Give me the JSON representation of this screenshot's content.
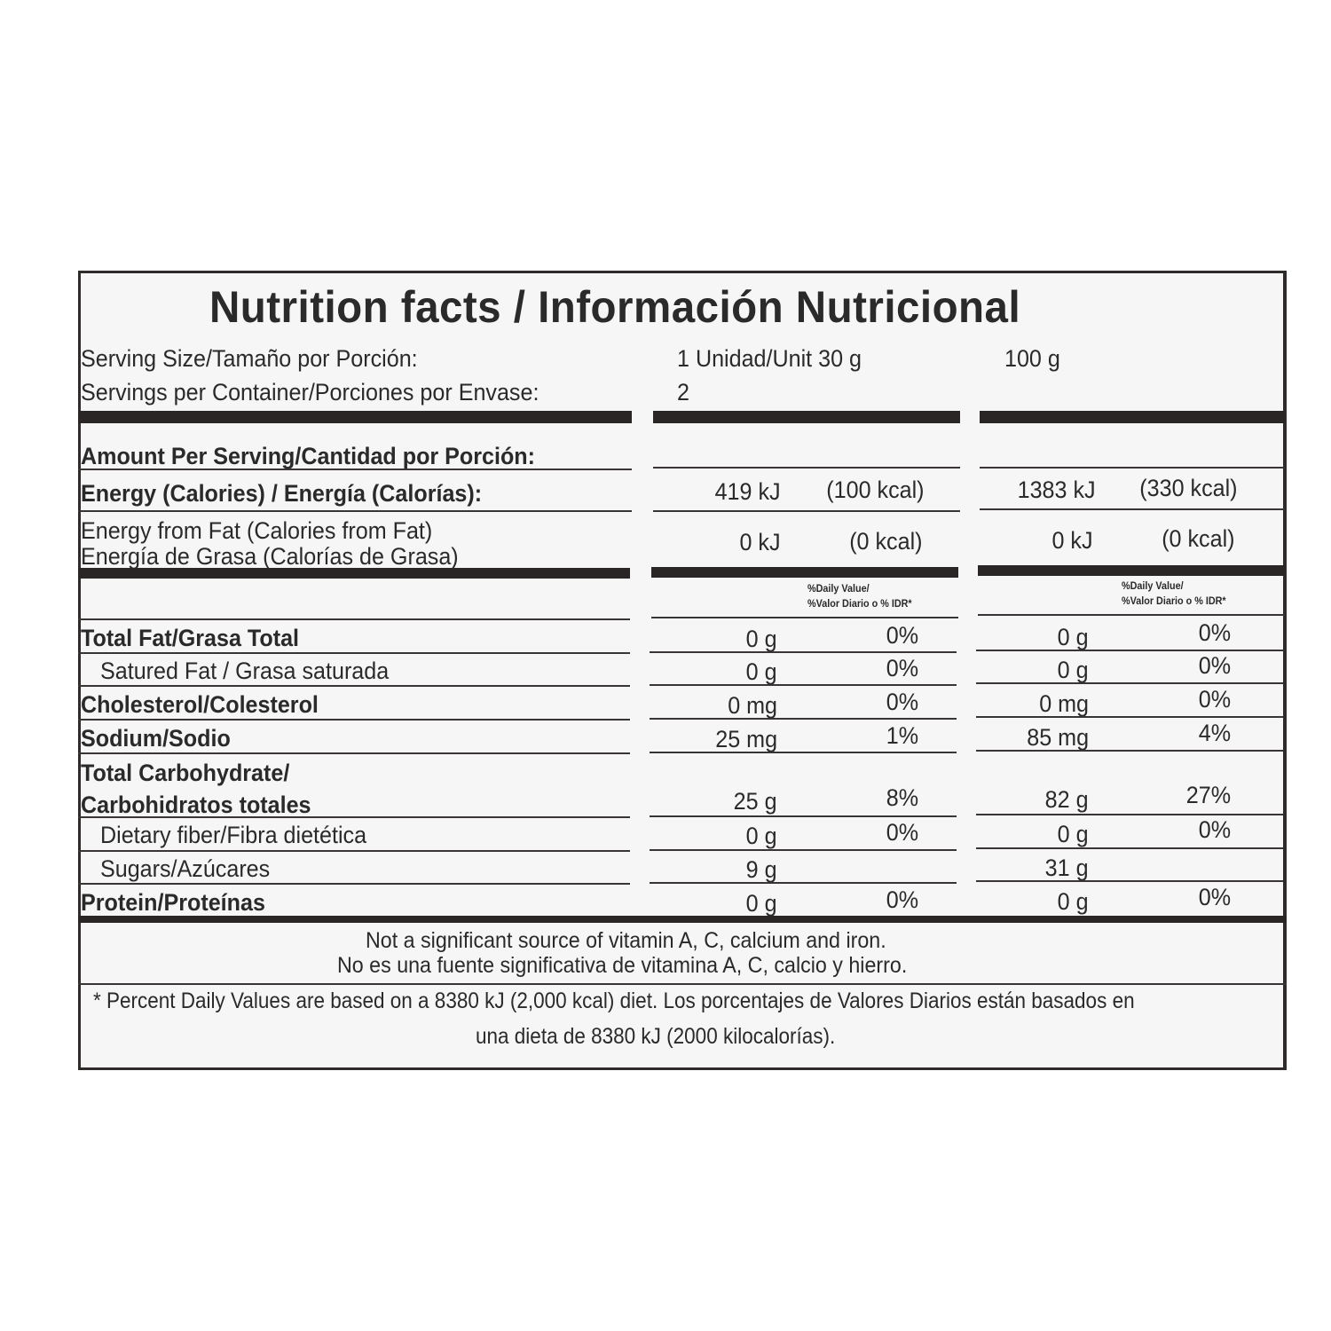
{
  "title": "Nutrition facts / Información Nutricional",
  "serving_size": {
    "label": "Serving Size/Tamaño por Porción:",
    "value_serving": "1 Unidad/Unit 30 g",
    "value_100": "100 g"
  },
  "servings_per_container": {
    "label": "Servings per Container/Porciones por Envase:",
    "value": "2"
  },
  "amount_per_serving": "Amount Per Serving/Cantidad por Porción:",
  "energy": {
    "label": "Energy (Calories) / Energía (Calorías):",
    "kj_serving": "419 kJ",
    "kcal_serving": "(100 kcal)",
    "kj_100": "1383 kJ",
    "kcal_100": "(330 kcal)"
  },
  "energy_fat": {
    "label_en": "Energy from Fat (Calories from Fat)",
    "label_es": "Energía de Grasa (Calorías de Grasa)",
    "kj_serving": "0 kJ",
    "kcal_serving": "(0 kcal)",
    "kj_100": "0 kJ",
    "kcal_100": "(0 kcal)"
  },
  "dv_header": {
    "line1": "%Daily Value/",
    "line2": "%Valor Diario o % IDR*"
  },
  "rows": [
    {
      "label": "Total Fat/Grasa Total",
      "bold": true,
      "serving": "0 g",
      "dv_serving": "0%",
      "per100": "0 g",
      "dv_100": "0%"
    },
    {
      "label": "Satured Fat / Grasa saturada",
      "bold": false,
      "serving": "0 g",
      "dv_serving": "0%",
      "per100": "0 g",
      "dv_100": "0%"
    },
    {
      "label": "Cholesterol/Colesterol",
      "bold": true,
      "serving": "0 mg",
      "dv_serving": "0%",
      "per100": "0 mg",
      "dv_100": "0%"
    },
    {
      "label": "Sodium/Sodio",
      "bold": true,
      "serving": "25 mg",
      "dv_serving": "1%",
      "per100": "85 mg",
      "dv_100": "4%"
    },
    {
      "label": "Total Carbohydrate/",
      "label2": "Carbohidratos totales",
      "bold": true,
      "serving": "25 g",
      "dv_serving": "8%",
      "per100": "82 g",
      "dv_100": "27%"
    },
    {
      "label": "Dietary fiber/Fibra dietética",
      "bold": false,
      "serving": "0 g",
      "dv_serving": "0%",
      "per100": "0 g",
      "dv_100": "0%"
    },
    {
      "label": "Sugars/Azúcares",
      "bold": false,
      "serving": "9 g",
      "dv_serving": "",
      "per100": "31 g",
      "dv_100": ""
    },
    {
      "label": "Protein/Proteínas",
      "bold": true,
      "serving": "0 g",
      "dv_serving": "0%",
      "per100": "0 g",
      "dv_100": "0%"
    }
  ],
  "vitamins_note": {
    "en": "Not a significant source of vitamin A, C, calcium and iron.",
    "es": "No es una fuente significativa de vitamina A, C, calcio y hierro."
  },
  "footnote": {
    "line1": "* Percent Daily Values are based on a 8380 kJ (2,000 kcal) diet. Los porcentajes de Valores Diarios están basados en",
    "line2": "una dieta de 8380 kJ (2000 kilocalorías)."
  }
}
